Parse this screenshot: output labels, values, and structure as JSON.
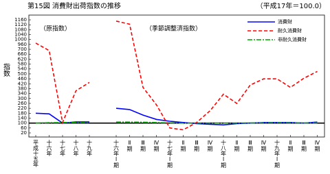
{
  "chart_data": {
    "type": "line",
    "title": "第15図 消費財出荷指数の推移",
    "base_note": "（平成17年＝100.0）",
    "y_label": "指数",
    "section_labels": [
      "（原指数）",
      "（季節調整済指数）"
    ],
    "categories": [
      "平成十五年",
      "十六年",
      "十七年",
      "十八年",
      "十九年",
      null,
      "十六年Ⅰ期",
      "Ⅱ期",
      "Ⅲ期",
      "Ⅳ期",
      "十七年Ⅰ期",
      "Ⅱ期",
      "Ⅲ期",
      "Ⅳ期",
      "十八年Ⅰ期",
      "Ⅱ期",
      "Ⅲ期",
      "Ⅳ期",
      "十九年Ⅰ期",
      "Ⅱ期",
      "Ⅲ期",
      "Ⅳ期"
    ],
    "series": [
      {
        "name": "消費財",
        "color": "#0000ff",
        "dash": "solid",
        "values": [
          180,
          175,
          100,
          110,
          110,
          null,
          220,
          210,
          165,
          130,
          115,
          105,
          95,
          90,
          85,
          95,
          100,
          105,
          105,
          105,
          100,
          108
        ]
      },
      {
        "name": "耐久消費財",
        "color": "#ff0000",
        "dash": "dashed",
        "values": [
          971,
          690,
          105,
          363,
          431,
          null,
          1150,
          1125,
          390,
          249,
          60,
          45,
          105,
          200,
          335,
          260,
          410,
          460,
          460,
          390,
          465,
          520
        ]
      },
      {
        "name": "非耐久消費財",
        "color": "#00a000",
        "dash": "dashdot",
        "values": [
          100,
          103,
          105,
          105,
          104,
          null,
          108,
          108,
          107,
          104,
          102,
          100,
          100,
          100,
          100,
          100,
          101,
          102,
          103,
          102,
          101,
          102
        ]
      }
    ],
    "ylim": [
      20,
      1160
    ],
    "yticks": [
      20,
      60,
      100,
      140,
      180,
      220,
      260,
      300,
      340,
      380,
      420,
      460,
      500,
      540,
      580,
      620,
      660,
      700,
      960,
      1000,
      1040,
      1080,
      1120,
      1160
    ],
    "baseline": true,
    "legend": "top-right"
  }
}
